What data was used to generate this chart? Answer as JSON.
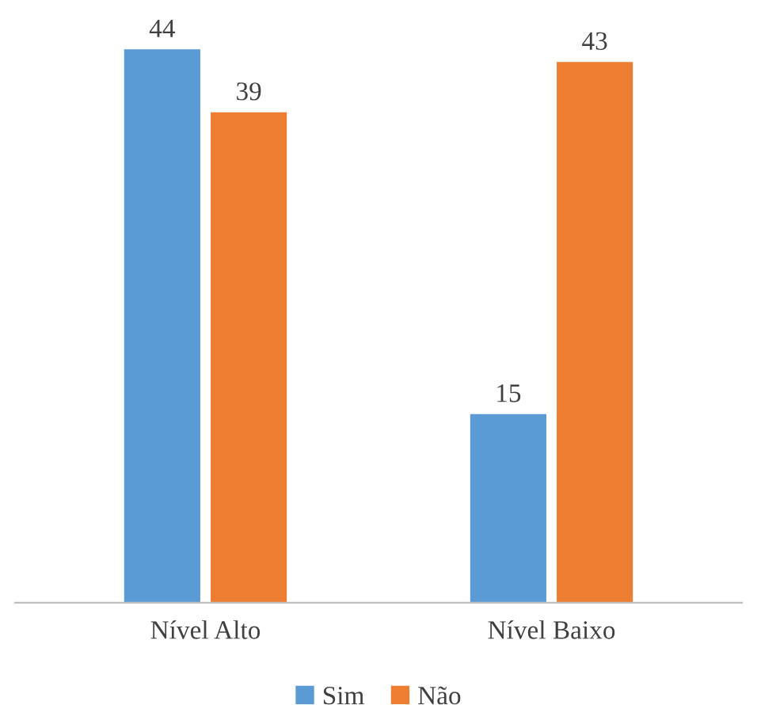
{
  "chart_data": {
    "type": "bar",
    "categories": [
      "Nível Alto",
      "Nível Baixo"
    ],
    "series": [
      {
        "name": "Sim",
        "color": "#5b9bd5",
        "values": [
          44,
          15
        ]
      },
      {
        "name": "Não",
        "color": "#ed7d31",
        "values": [
          39,
          43
        ]
      }
    ],
    "data_labels": true,
    "legend": "bottom",
    "grid": false
  }
}
